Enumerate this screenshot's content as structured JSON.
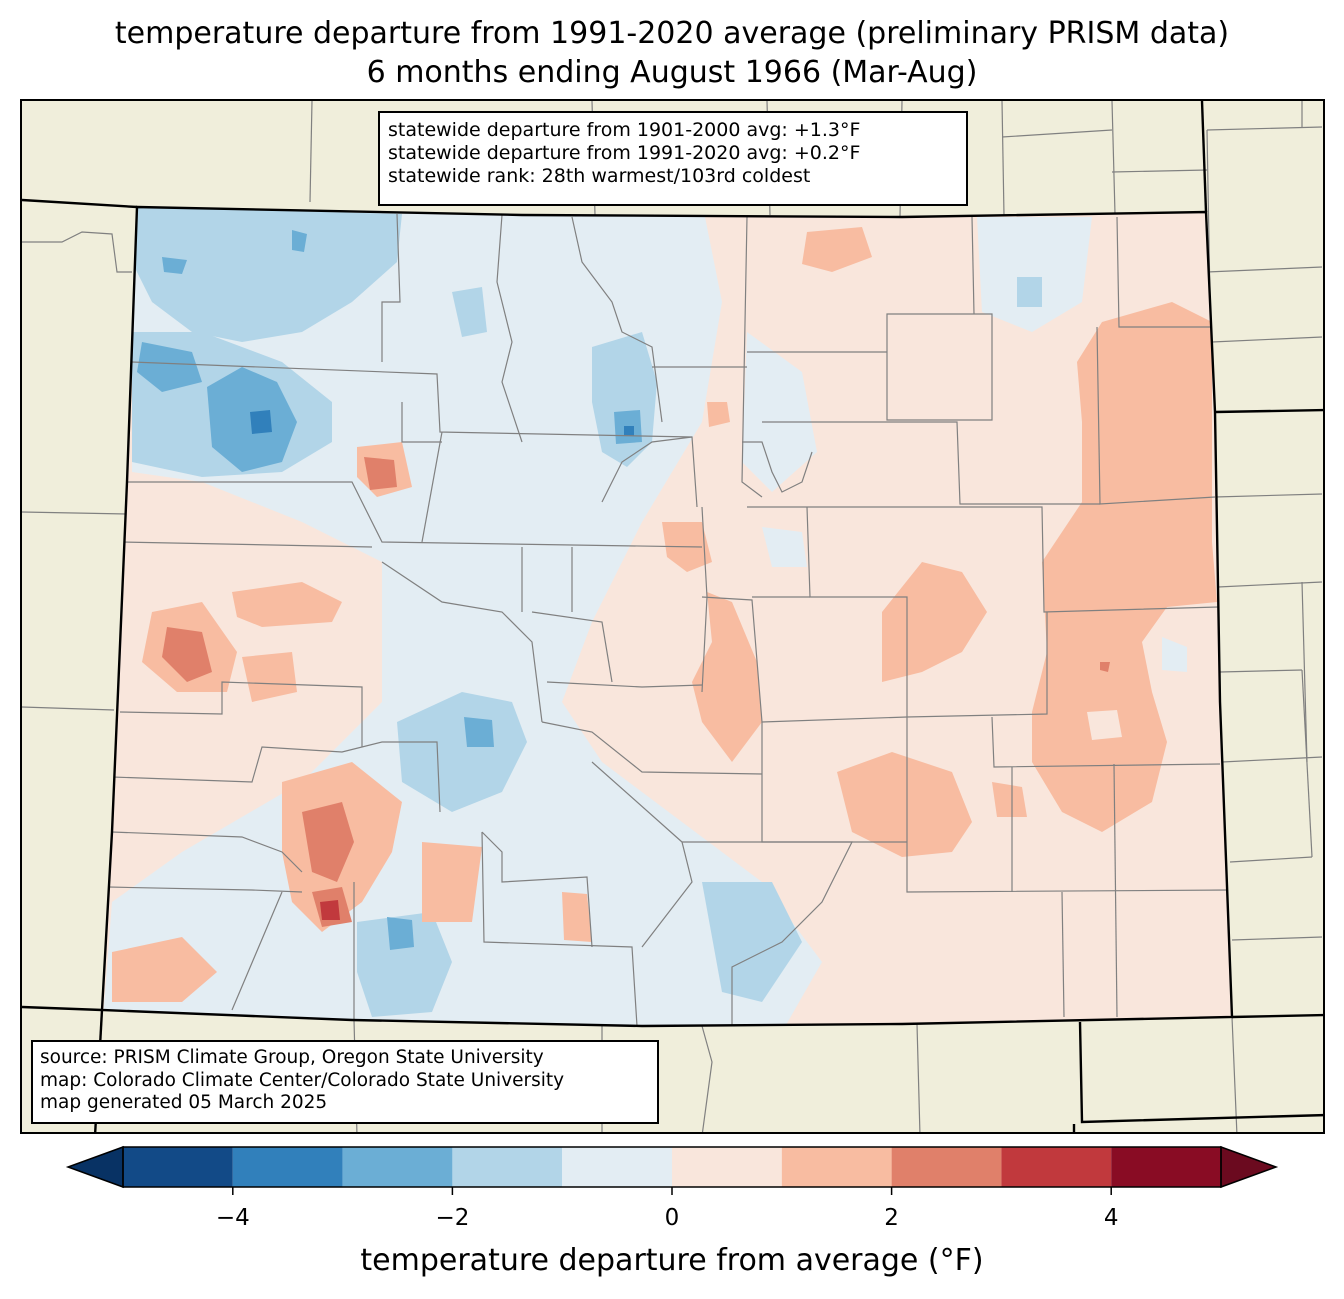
{
  "title_line1": "temperature departure from 1991-2020 average (preliminary PRISM data)",
  "title_line2": "6 months ending August 1966 (Mar-Aug)",
  "stats": {
    "line1": "statewide departure from 1901-2000 avg: +1.3°F",
    "line2": "statewide departure from 1991-2020 avg: +0.2°F",
    "line3": "statewide rank: 28th warmest/103rd coldest"
  },
  "source": {
    "line1": "source: PRISM Climate Group, Oregon State University",
    "line2": "map: Colorado Climate Center/Colorado State University",
    "line3": "map generated 05 March 2025"
  },
  "colorbar": {
    "label": "temperature departure from average (°F)",
    "ticks": [
      {
        "value": -4,
        "label": "−4"
      },
      {
        "value": -2,
        "label": "−2"
      },
      {
        "value": 0,
        "label": "0"
      },
      {
        "value": 2,
        "label": "2"
      },
      {
        "value": 4,
        "label": "4"
      }
    ],
    "range": [
      -5,
      5
    ],
    "levels": [
      -5,
      -4,
      -3,
      -2,
      -1,
      0,
      1,
      2,
      3,
      4,
      5
    ],
    "colors": [
      "#124a87",
      "#3180bb",
      "#6baed5",
      "#b2d5e8",
      "#e3edf3",
      "#f9e6dc",
      "#f8bca1",
      "#e0806a",
      "#c1393d",
      "#890c24"
    ],
    "under_color": "#083264",
    "over_color": "#6b0a1f"
  },
  "colors": {
    "background_land": "#f0eedb",
    "county_lines": "#808080",
    "state_lines": "#000000"
  }
}
